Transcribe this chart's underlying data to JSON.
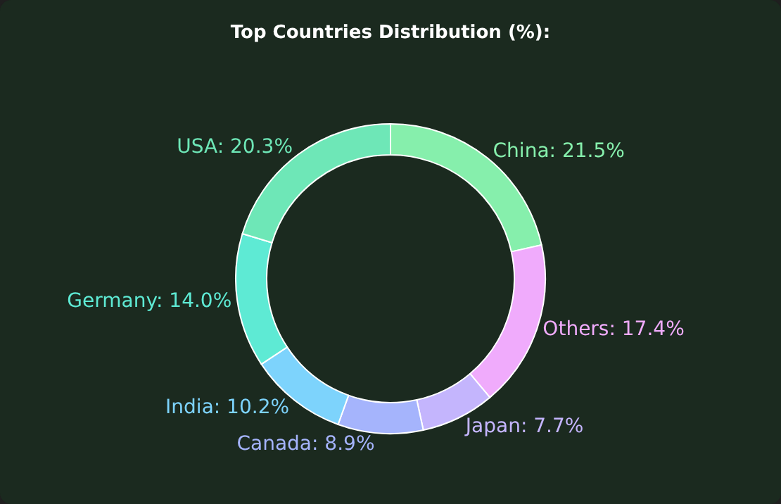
{
  "chart_data": {
    "type": "donut",
    "title": "Top Countries Distribution (%):",
    "categories": [
      "China: 21.5%",
      "Others: 17.4%",
      "Japan: 7.7%",
      "Canada: 8.9%",
      "India: 10.2%",
      "Germany: 14.0%",
      "USA: 20.3%"
    ],
    "values": [
      21.5,
      17.4,
      7.7,
      8.9,
      10.2,
      14.0,
      20.3
    ],
    "colors": [
      "#86efac",
      "#f0abfc",
      "#c4b5fd",
      "#a5b4fc",
      "#7dd3fc",
      "#5eead4",
      "#6ee7b7"
    ],
    "legend": false
  }
}
